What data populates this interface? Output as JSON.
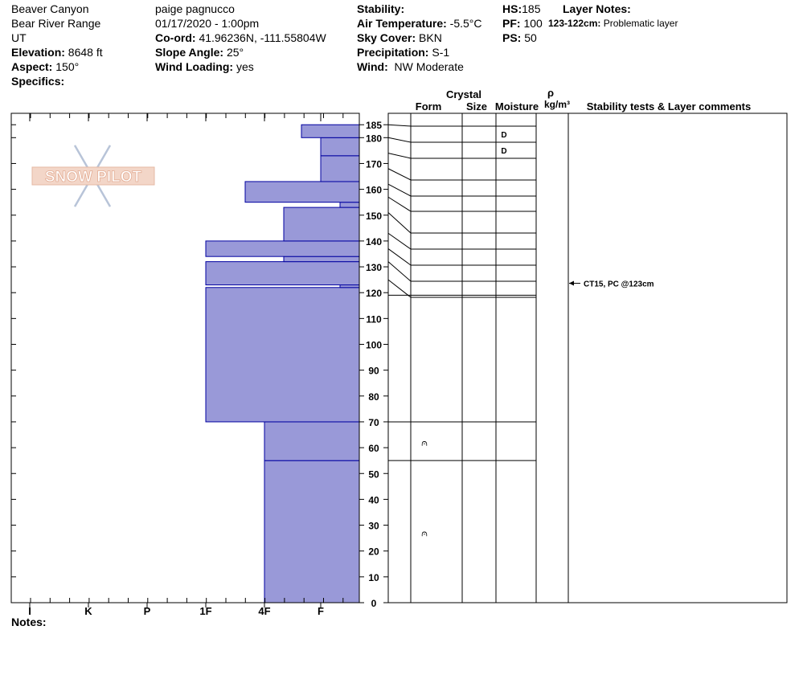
{
  "header": {
    "location": "Beaver Canyon",
    "range": "Bear River Range",
    "state": "UT",
    "elevation_label": "Elevation:",
    "elevation": "8648 ft",
    "aspect_label": "Aspect:",
    "aspect": "150°",
    "specifics_label": "Specifics:",
    "observer": "paige pagnucco",
    "datetime": "01/17/2020 - 1:00pm",
    "coord_label": "Co-ord:",
    "coord": "41.96236N, -111.55804W",
    "slope_label": "Slope Angle:",
    "slope": "25°",
    "wind_loading_label": "Wind Loading:",
    "wind_loading": "yes",
    "stability_label": "Stability:",
    "air_temp_label": "Air Temperature:",
    "air_temp": "-5.5°C",
    "sky_label": "Sky Cover:",
    "sky": "BKN",
    "precip_label": "Precipitation:",
    "precip": "S-1",
    "wind_label": "Wind:",
    "wind": "NW Moderate",
    "hs_label": "HS:",
    "hs": "185",
    "pf_label": "PF:",
    "pf": "100",
    "ps_label": "PS:",
    "ps": "50",
    "layer_notes_label": "Layer Notes:",
    "layer_note_range": "123-122cm:",
    "layer_note_text": "Problematic layer"
  },
  "watermark": "SNOW PILOT",
  "notes_label": "Notes:",
  "columns": {
    "crystal": "Crystal",
    "form": "Form",
    "size": "Size",
    "moisture": "Moisture",
    "rho": "ρ",
    "density_unit": "kg/m³",
    "stability": "Stability tests & Layer comments"
  },
  "colors": {
    "hardness_fill": "#9999d8",
    "hardness_stroke": "#0000a0"
  },
  "chart_data": {
    "type": "bar",
    "orientation": "horizontal",
    "x_ticks": [
      "I",
      "K",
      "P",
      "1F",
      "4F",
      "F"
    ],
    "y_ticks": [
      0,
      10,
      20,
      30,
      40,
      50,
      60,
      70,
      80,
      90,
      100,
      110,
      120,
      130,
      140,
      150,
      160,
      170,
      180,
      185
    ],
    "ylim": [
      0,
      190
    ],
    "hardness_layers": [
      {
        "top": 55,
        "bottom": 0,
        "hardness": "4F"
      },
      {
        "top": 70,
        "bottom": 55,
        "hardness": "4F"
      },
      {
        "top": 122,
        "bottom": 70,
        "hardness": "1F"
      },
      {
        "top": 123,
        "bottom": 122,
        "hardness": "F+"
      },
      {
        "top": 132,
        "bottom": 123,
        "hardness": "1F"
      },
      {
        "top": 134,
        "bottom": 132,
        "hardness": "4F+"
      },
      {
        "top": 140,
        "bottom": 134,
        "hardness": "1F"
      },
      {
        "top": 153,
        "bottom": 140,
        "hardness": "4F+"
      },
      {
        "top": 155,
        "bottom": 153,
        "hardness": "F+"
      },
      {
        "top": 163,
        "bottom": 155,
        "hardness": "4F-"
      },
      {
        "top": 173,
        "bottom": 163,
        "hardness": "F"
      },
      {
        "top": 180,
        "bottom": 173,
        "hardness": "F"
      },
      {
        "top": 185,
        "bottom": 180,
        "hardness": "F-"
      }
    ],
    "layer_boundaries": [
      185,
      180,
      174,
      168,
      162,
      157,
      151,
      143,
      137,
      132,
      125,
      119,
      70,
      55
    ],
    "moisture_labels": [
      {
        "top": 185,
        "bottom": 180,
        "value": "D"
      },
      {
        "top": 180,
        "bottom": 174,
        "value": "D"
      }
    ],
    "form_symbols": [
      {
        "depth": 62,
        "symbol": "⩀"
      },
      {
        "depth": 27,
        "symbol": "⩀"
      }
    ],
    "stability_tests": [
      {
        "depth": 123,
        "text": "CT15, PC @123cm"
      }
    ]
  }
}
